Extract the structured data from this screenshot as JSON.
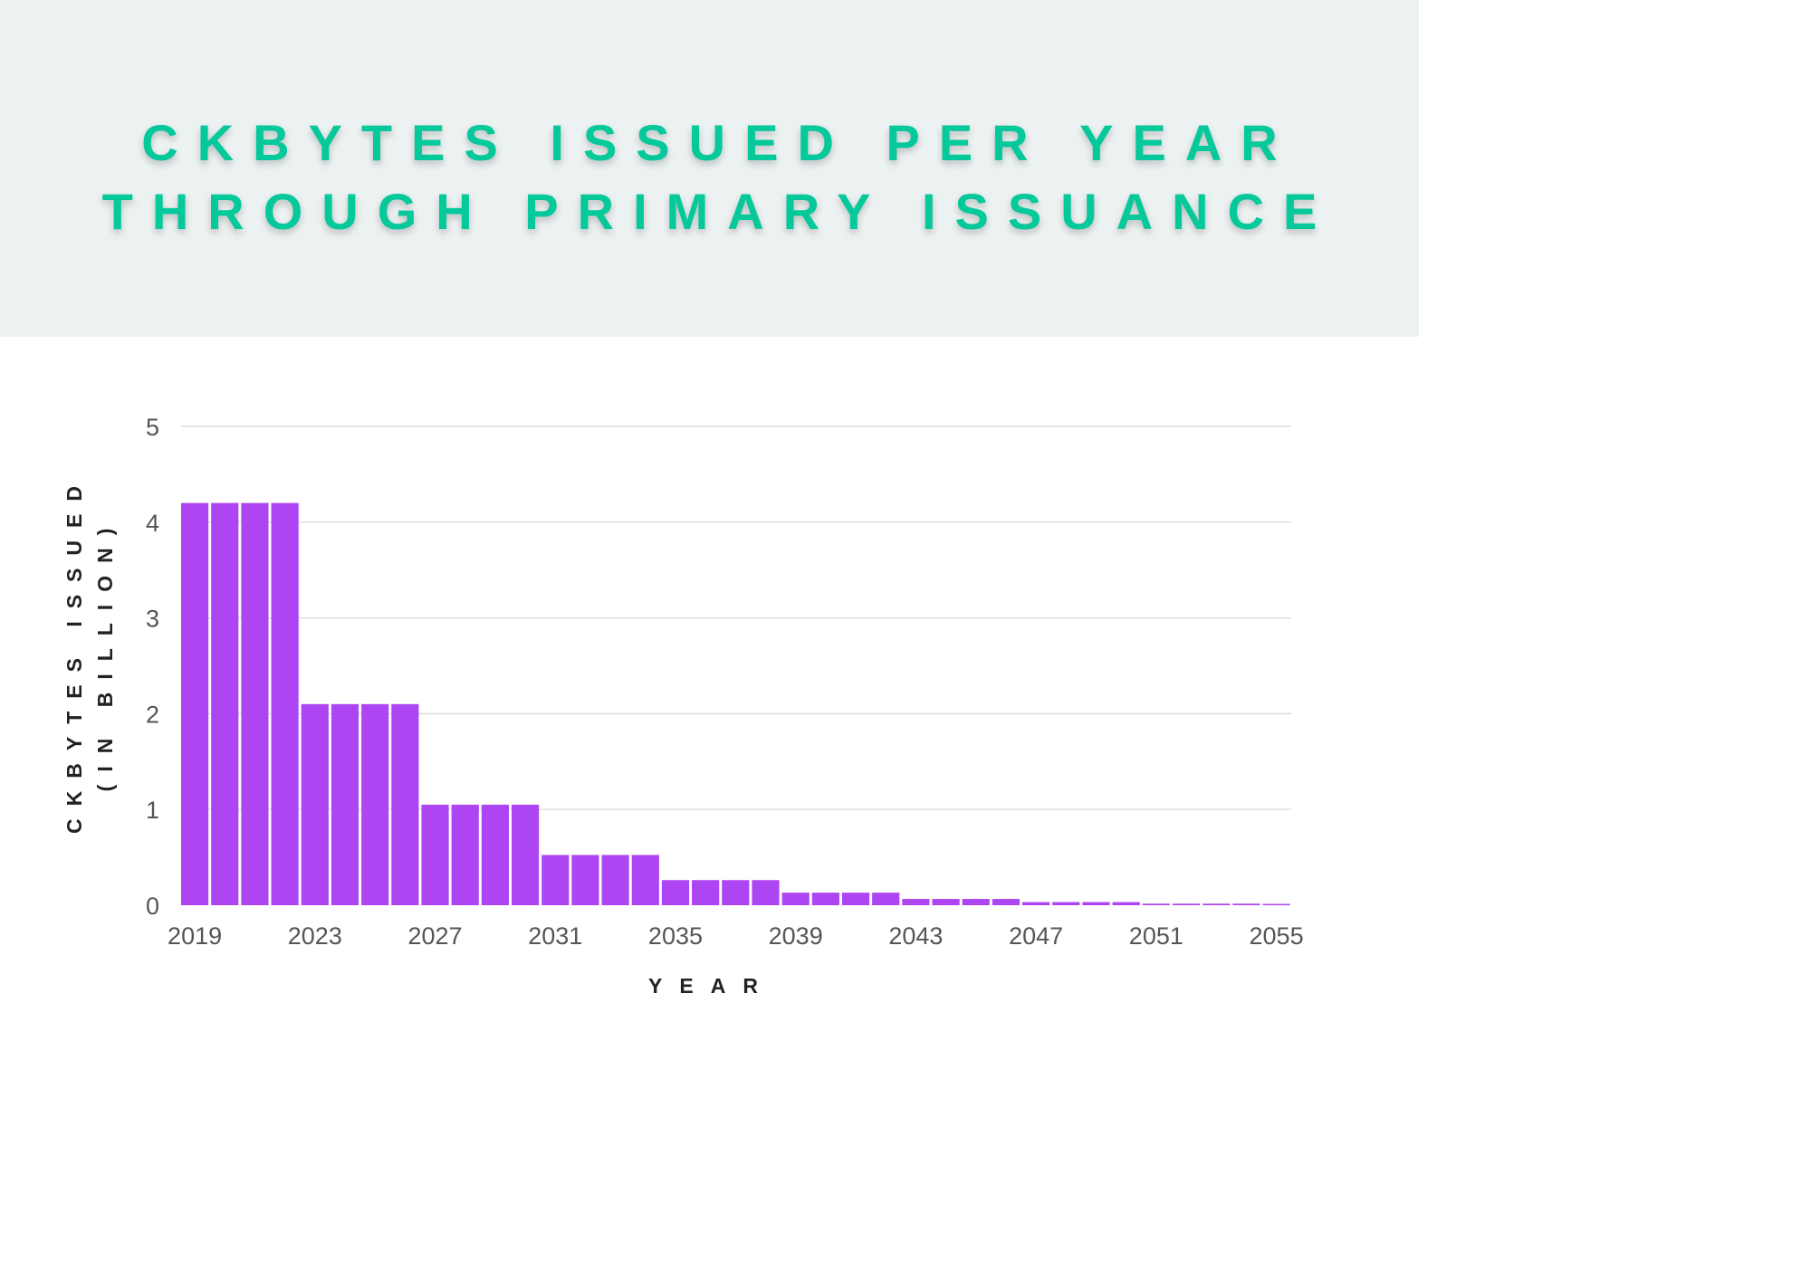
{
  "colors": {
    "header_background": "#ecf1f1",
    "title": "#06c99b",
    "bar": "#ad46f2",
    "gridline": "#d8d8d8",
    "tick_label": "#555555",
    "axis_title": "#222222"
  },
  "chart_data": {
    "type": "bar",
    "title_lines": [
      "CKBYTES ISSUED PER YEAR",
      "THROUGH PRIMARY ISSUANCE"
    ],
    "xlabel": "YEAR",
    "ylabel_lines": [
      "CKBYTES ISSUED",
      "(IN BILLION)"
    ],
    "ylim": [
      0,
      5
    ],
    "yticks": [
      "0",
      "1",
      "2",
      "3",
      "4",
      "5"
    ],
    "grid": true,
    "legend": "none",
    "xticks": [
      "2019",
      "2023",
      "2027",
      "2031",
      "2035",
      "2039",
      "2043",
      "2047",
      "2051",
      "2055"
    ],
    "categories": [
      "2019",
      "2020",
      "2021",
      "2022",
      "2023",
      "2024",
      "2025",
      "2026",
      "2027",
      "2028",
      "2029",
      "2030",
      "2031",
      "2032",
      "2033",
      "2034",
      "2035",
      "2036",
      "2037",
      "2038",
      "2039",
      "2040",
      "2041",
      "2042",
      "2043",
      "2044",
      "2045",
      "2046",
      "2047",
      "2048",
      "2049",
      "2050",
      "2051",
      "2052",
      "2053",
      "2054",
      "2055"
    ],
    "values": [
      4.2,
      4.2,
      4.2,
      4.2,
      2.1,
      2.1,
      2.1,
      2.1,
      1.05,
      1.05,
      1.05,
      1.05,
      0.525,
      0.525,
      0.525,
      0.525,
      0.2625,
      0.2625,
      0.2625,
      0.2625,
      0.1313,
      0.1313,
      0.1313,
      0.1313,
      0.0656,
      0.0656,
      0.0656,
      0.0656,
      0.0328,
      0.0328,
      0.0328,
      0.0328,
      0.0164,
      0.0164,
      0.0164,
      0.0164,
      0.0082
    ]
  }
}
